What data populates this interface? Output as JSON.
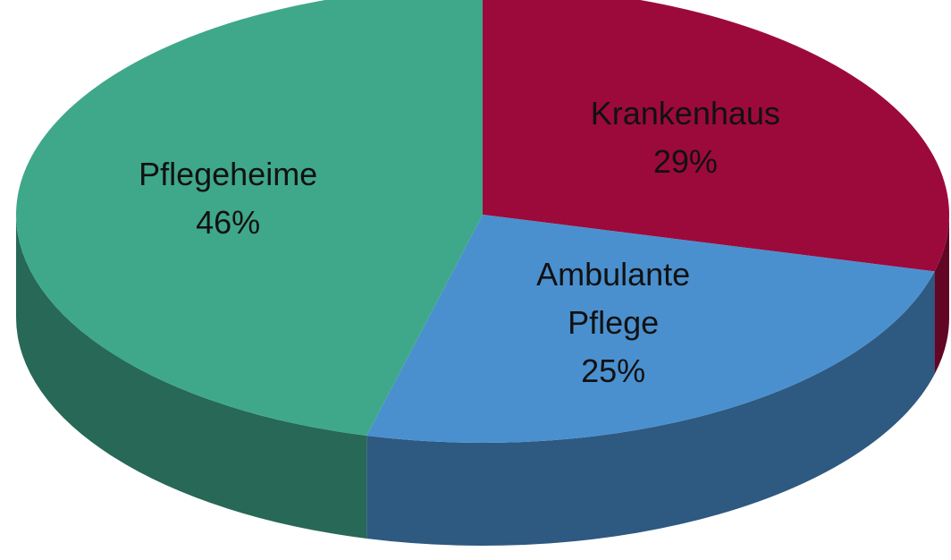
{
  "chart_data": {
    "type": "pie",
    "categories": [
      "Krankenhaus",
      "Ambulante Pflege",
      "Pflegeheime"
    ],
    "values": [
      29,
      25,
      46
    ],
    "value_labels": [
      "29%",
      "25%",
      "46%"
    ],
    "colors": [
      "#9c0a3c",
      "#4a90cf",
      "#3fa88a"
    ]
  }
}
